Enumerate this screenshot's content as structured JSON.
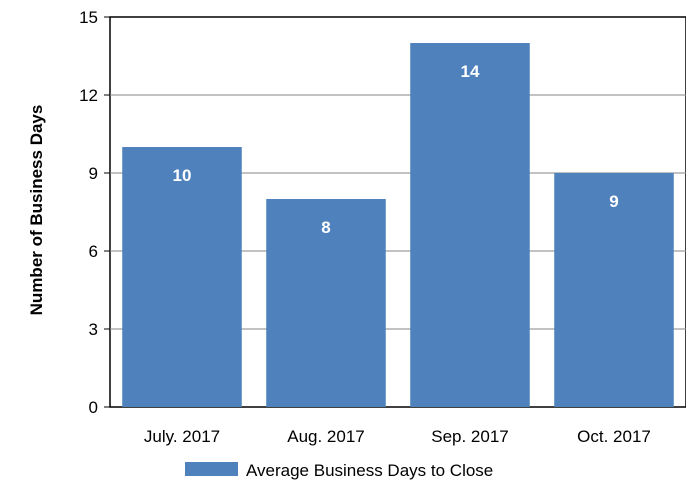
{
  "chart_data": {
    "type": "bar",
    "categories": [
      "July. 2017",
      "Aug. 2017",
      "Sep. 2017",
      "Oct. 2017"
    ],
    "series": [
      {
        "name": "Average Business Days to Close",
        "values": [
          10,
          8,
          14,
          9
        ],
        "color": "#4f81bd"
      }
    ],
    "ylabel": "Number of Business Days",
    "xlabel": "",
    "ylim": [
      0,
      15
    ],
    "yticks": [
      0,
      3,
      6,
      9,
      12,
      15
    ],
    "grid": true,
    "legend": "bottom"
  }
}
